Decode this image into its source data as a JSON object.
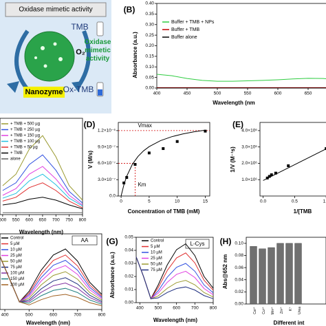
{
  "diagram": {
    "title": "Oxidase mimetic activity",
    "substrate": "TMB",
    "oxidant": "O₂",
    "activity": "Oxidase mimetic activity",
    "catalyst": "Nanozyme",
    "product": "Ox-TMB"
  },
  "chart_data": [
    {
      "type": "line",
      "panel_label": "(B)",
      "ylabel": "Absorbance (a.u.)",
      "xlabel": "Wavelength (nm",
      "x": [
        400,
        425,
        450,
        475,
        500,
        525,
        550,
        575,
        600,
        625,
        650,
        675,
        700
      ],
      "xlim": [
        400,
        700
      ],
      "xticks": [
        400,
        450,
        500,
        550,
        600,
        650
      ],
      "ylim": [
        0,
        0.4
      ],
      "yticks": [
        {
          "value": 0,
          "label": "0.00"
        },
        0.05,
        {
          "value": 0.1,
          "label": "0.10"
        },
        0.15,
        {
          "value": 0.2,
          "label": "0.20"
        },
        0.25,
        {
          "value": 0.3,
          "label": "0.30"
        },
        0.35,
        {
          "value": 0.4,
          "label": "0.40"
        }
      ],
      "series": [
        {
          "name": "Buffer + TMB + NPs",
          "color": "#2ecc40",
          "values": [
            0.065,
            0.058,
            0.045,
            0.036,
            0.032,
            0.032,
            0.034,
            0.036,
            0.039,
            0.043,
            0.046,
            0.045,
            0.04
          ]
        },
        {
          "name": "Buffer + TMB",
          "color": "#c00000",
          "values": [
            0.002,
            0.002,
            0.002,
            0.002,
            0.002,
            0.002,
            0.002,
            0.002,
            0.002,
            0.002,
            0.002,
            0.002,
            0.002
          ]
        },
        {
          "name": "Buffer alone",
          "color": "#000000",
          "values": [
            0,
            0,
            0,
            0,
            0,
            0,
            0,
            0,
            0,
            0,
            0,
            0,
            0
          ]
        }
      ]
    },
    {
      "type": "line",
      "xlabel": "Wavelength (nm)",
      "x": [
        500,
        550,
        600,
        650,
        700,
        750,
        800
      ],
      "xlim": [
        490,
        800
      ],
      "xticks": [
        500,
        550,
        600,
        650,
        700,
        750,
        800
      ],
      "ylim": [
        0,
        1
      ],
      "series": [
        {
          "name": "+ TMB + 500 µg",
          "color": "#9a9a30",
          "values": [
            0.3,
            0.42,
            0.68,
            0.82,
            0.6,
            0.3,
            0.15
          ]
        },
        {
          "name": "+ TMB + 250 µg",
          "color": "#3050e0",
          "values": [
            0.25,
            0.33,
            0.52,
            0.62,
            0.46,
            0.24,
            0.12
          ]
        },
        {
          "name": "+ TMB + 150 µg",
          "color": "#e040e0",
          "values": [
            0.2,
            0.27,
            0.42,
            0.5,
            0.37,
            0.2,
            0.1
          ]
        },
        {
          "name": "+ TMB + 100 µg",
          "color": "#20c0e0",
          "values": [
            0.17,
            0.22,
            0.35,
            0.42,
            0.31,
            0.17,
            0.09
          ]
        },
        {
          "name": "+ TMB + 50 µg",
          "color": "#e03030",
          "values": [
            0.14,
            0.18,
            0.28,
            0.33,
            0.25,
            0.14,
            0.07
          ]
        },
        {
          "name": "+ TMB",
          "color": "#000000",
          "values": [
            0.1,
            0.12,
            0.16,
            0.18,
            0.15,
            0.1,
            0.06
          ]
        },
        {
          "name": "alone",
          "color": "#606060",
          "values": [
            0.02,
            0.02,
            0.02,
            0.02,
            0.02,
            0.02,
            0.02
          ]
        }
      ]
    },
    {
      "type": "scatter",
      "panel_label": "(D)",
      "ylabel": "V (M/s)",
      "xlabel": "Concentration of TMB (mM)",
      "color": "#000000",
      "x": [
        0.5,
        1,
        2.5,
        5,
        7.5,
        10,
        15
      ],
      "values": [
        2.4e-07,
        3.4e-07,
        5.8e-07,
        7.9e-07,
        8.7e-07,
        1e-06,
        1.19e-06
      ],
      "fit_x": [
        0,
        0.5,
        1,
        2,
        3,
        4,
        5,
        7,
        9,
        11,
        13,
        15
      ],
      "fit_values": [
        0,
        2.07e-07,
        3.63e-07,
        5.8e-07,
        7.25e-07,
        8.29e-07,
        9.06e-07,
        1.015e-06,
        1.0875e-06,
        1.139e-06,
        1.178e-06,
        1.208e-06
      ],
      "ref_color": "#d00000",
      "vmax": 1.2e-06,
      "km": 2.5,
      "half_vmax": 6e-07,
      "annotations": [
        "Vmax",
        "Km"
      ],
      "xlim": [
        -0.5,
        15.8
      ],
      "xticks": [
        0,
        5,
        10,
        15
      ],
      "ylim": [
        0,
        1.35e-06
      ],
      "yticks": [
        {
          "value": 0,
          "label": "0.0"
        },
        {
          "value": 3e-07,
          "label": "3.0×10⁻⁷"
        },
        {
          "value": 6e-07,
          "label": "6.0×10⁻⁷"
        },
        {
          "value": 9e-07,
          "label": "9.0×10⁻⁷"
        },
        {
          "value": 1.2e-06,
          "label": "1.2×10⁻⁶"
        }
      ]
    },
    {
      "type": "scatter",
      "panel_label": "(E)",
      "ylabel": "1/V (M⁻¹s)",
      "xlabel": "1/[TMB",
      "color": "#000000",
      "x": [
        0.067,
        0.1,
        0.133,
        0.2,
        0.4,
        1.0,
        1.33
      ],
      "values": [
        1100000.0,
        1200000.0,
        1300000.0,
        1400000.0,
        1850000.0,
        2900000.0,
        3500000.0
      ],
      "fit_x": [
        0,
        1.5
      ],
      "fit_values": [
        950000.0,
        3850000.0
      ],
      "xlim": [
        -0.05,
        1.5
      ],
      "xticks": [
        {
          "value": 0,
          "label": "0.0"
        },
        {
          "value": 0.5,
          "label": "0.5"
        },
        {
          "value": 1,
          "label": "1.0"
        }
      ],
      "ylim": [
        0,
        4500000.0
      ],
      "yticks": [
        {
          "value": 1000000.0,
          "label": "1.0×10⁶"
        },
        {
          "value": 2000000.0,
          "label": "2.0×10⁶"
        },
        {
          "value": 3000000.0,
          "label": "3.0×10⁶"
        },
        {
          "value": 4000000.0,
          "label": "4.0×10⁶"
        }
      ]
    },
    {
      "type": "line",
      "xlabel": "Wavelength (nm)",
      "box_label": "AA",
      "x": [
        380,
        420,
        460,
        500,
        550,
        600,
        650,
        700,
        750,
        800
      ],
      "xlim": [
        380,
        800
      ],
      "xticks": [
        400,
        500,
        600,
        700,
        800
      ],
      "ylim": [
        0,
        1
      ],
      "series": [
        {
          "name": "Control",
          "color": "#000000",
          "values": [
            0.7,
            0.4,
            0.1,
            0.24,
            0.52,
            0.72,
            0.8,
            0.64,
            0.36,
            0.2
          ]
        },
        {
          "name": "5 µM",
          "color": "#e03030",
          "values": [
            0.7,
            0.4,
            0.1,
            0.216,
            0.468,
            0.648,
            0.72,
            0.576,
            0.324,
            0.18
          ]
        },
        {
          "name": "10 µM",
          "color": "#3050e0",
          "values": [
            0.7,
            0.4,
            0.1,
            0.195,
            0.423,
            0.585,
            0.65,
            0.52,
            0.293,
            0.163
          ]
        },
        {
          "name": "25 µM",
          "color": "#e040e0",
          "values": [
            0.7,
            0.4,
            0.1,
            0.174,
            0.377,
            0.522,
            0.58,
            0.464,
            0.261,
            0.145
          ]
        },
        {
          "name": "50 µM",
          "color": "#9a9a30",
          "values": [
            0.7,
            0.4,
            0.1,
            0.15,
            0.325,
            0.45,
            0.5,
            0.4,
            0.225,
            0.125
          ]
        },
        {
          "name": "75 µM",
          "color": "#203080",
          "values": [
            0.7,
            0.4,
            0.1,
            0.126,
            0.273,
            0.378,
            0.42,
            0.336,
            0.189,
            0.105
          ]
        },
        {
          "name": "100 µM",
          "color": "#8030a0",
          "values": [
            0.7,
            0.4,
            0.1,
            0.105,
            0.228,
            0.315,
            0.35,
            0.28,
            0.158,
            0.088
          ]
        },
        {
          "name": "150 µM",
          "color": "#208080",
          "values": [
            0.7,
            0.4,
            0.1,
            0.084,
            0.182,
            0.252,
            0.28,
            0.224,
            0.126,
            0.07
          ]
        },
        {
          "name": "200 µM",
          "color": "#a06020",
          "values": [
            0.7,
            0.4,
            0.1,
            0.06,
            0.13,
            0.18,
            0.2,
            0.16,
            0.09,
            0.05
          ]
        }
      ]
    },
    {
      "type": "line",
      "panel_label": "(G)",
      "ylabel": "Absorbance (a.u.)",
      "xlabel": "Wavelength (nm)",
      "box_label": "L-Cys",
      "x": [
        380,
        420,
        460,
        500,
        550,
        600,
        650,
        700,
        750,
        800
      ],
      "xlim": [
        380,
        800
      ],
      "xticks": [
        400,
        500,
        600,
        700,
        800
      ],
      "ylim": [
        0,
        0.05
      ],
      "yticks": [
        {
          "value": 0,
          "label": "0.00"
        },
        0.01,
        0.02,
        0.03,
        0.04,
        0.05
      ],
      "series": [
        {
          "name": "Control",
          "color": "#000000",
          "values": [
            0.035,
            0.02,
            0.003,
            0.0135,
            0.029,
            0.0405,
            0.045,
            0.036,
            0.02,
            0.011
          ]
        },
        {
          "name": "5 µM",
          "color": "#e03030",
          "values": [
            0.035,
            0.02,
            0.003,
            0.0114,
            0.0247,
            0.0342,
            0.038,
            0.0304,
            0.0171,
            0.0095
          ]
        },
        {
          "name": "10 µM",
          "color": "#3050e0",
          "values": [
            0.035,
            0.02,
            0.003,
            0.009,
            0.0195,
            0.027,
            0.03,
            0.024,
            0.0135,
            0.0075
          ]
        },
        {
          "name": "25 µM",
          "color": "#e040e0",
          "values": [
            0.035,
            0.02,
            0.003,
            0.0072,
            0.0156,
            0.0216,
            0.024,
            0.0192,
            0.0108,
            0.006
          ]
        },
        {
          "name": "50 µM",
          "color": "#9a9a30",
          "values": [
            0.035,
            0.02,
            0.003,
            0.0051,
            0.011,
            0.0153,
            0.017,
            0.0136,
            0.0077,
            0.0043
          ]
        },
        {
          "name": "75 µM",
          "color": "#203080",
          "values": [
            0.035,
            0.02,
            0.003,
            0.0036,
            0.0078,
            0.0108,
            0.012,
            0.0096,
            0.0054,
            0.003
          ]
        }
      ]
    },
    {
      "type": "bar",
      "panel_label": "(H)",
      "ylabel": "Abs@652 nm",
      "xlabel": "Different int",
      "color": "#707070",
      "categories": [
        "Ca²⁺",
        "Cu²⁺",
        "Mn²⁺",
        "Zn²⁺",
        "K⁺",
        "Urea"
      ],
      "values": [
        0.095,
        0.091,
        0.093,
        0.1,
        0.1,
        0.1
      ],
      "ylim": [
        0,
        0.11
      ],
      "yticks": [
        {
          "value": 0,
          "label": "0.00"
        },
        0.02,
        0.04,
        0.06,
        0.08,
        {
          "value": 0.1,
          "label": "0.10"
        }
      ]
    }
  ]
}
